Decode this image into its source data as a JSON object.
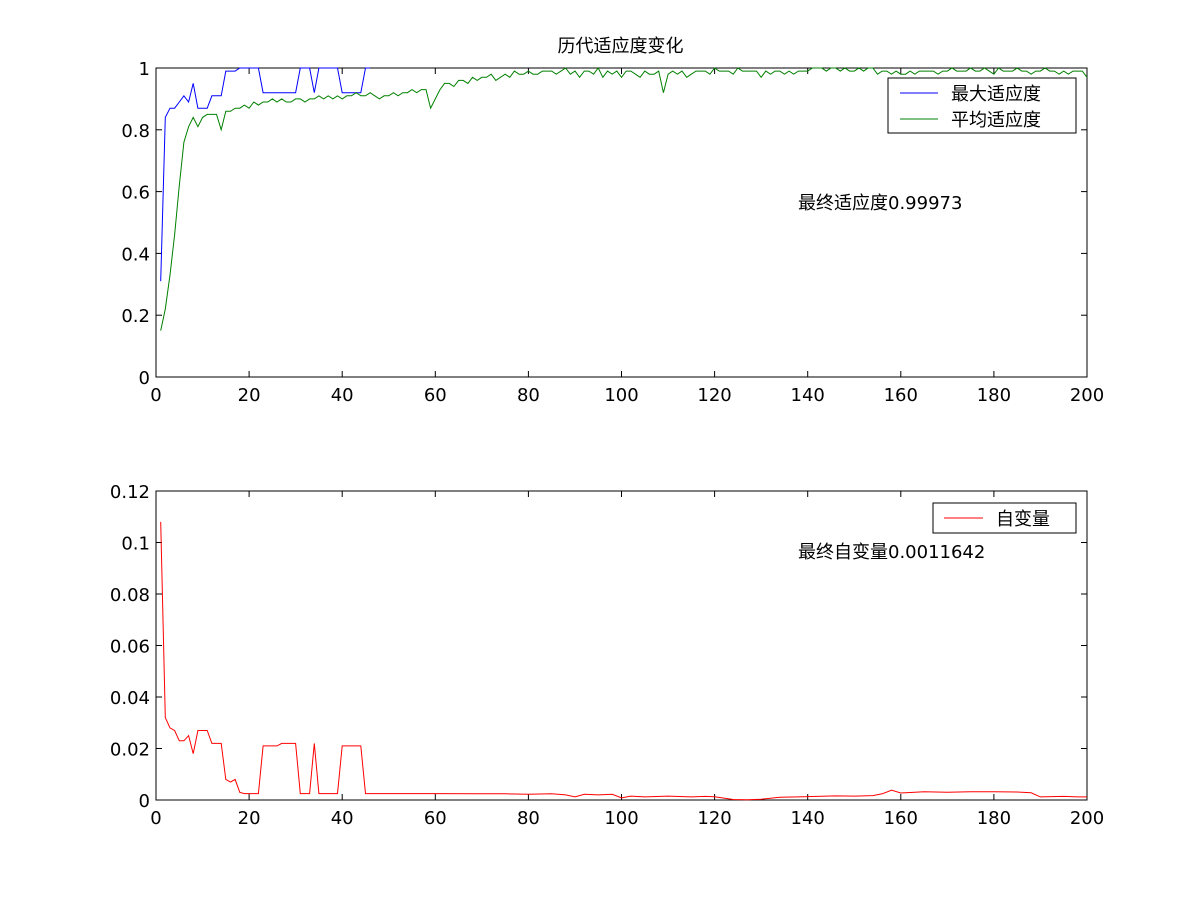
{
  "chart_data": [
    {
      "type": "line",
      "title": "历代适应度变化",
      "xlabel": "",
      "ylabel": "",
      "xlim": [
        0,
        200
      ],
      "ylim": [
        0,
        1
      ],
      "xticks": [
        0,
        20,
        40,
        60,
        80,
        100,
        120,
        140,
        160,
        180,
        200
      ],
      "yticks": [
        0,
        0.2,
        0.4,
        0.6,
        0.8,
        1
      ],
      "xtick_labels": [
        "0",
        "20",
        "40",
        "60",
        "80",
        "100",
        "120",
        "140",
        "160",
        "180",
        "200"
      ],
      "ytick_labels": [
        "0",
        "0.2",
        "0.4",
        "0.6",
        "0.8",
        "1"
      ],
      "grid": false,
      "legend_position": "top-right",
      "annotation": "最终适应度0.99973",
      "series": [
        {
          "name": "最大适应度",
          "color": "#0000ff",
          "x": [
            1,
            2,
            3,
            4,
            5,
            6,
            7,
            8,
            9,
            10,
            11,
            12,
            13,
            14,
            15,
            16,
            17,
            18,
            19,
            20,
            21,
            22,
            23,
            24,
            25,
            26,
            27,
            28,
            29,
            30,
            31,
            32,
            33,
            34,
            35,
            36,
            37,
            38,
            39,
            40,
            41,
            42,
            43,
            44,
            45,
            46
          ],
          "y": [
            0.31,
            0.84,
            0.87,
            0.87,
            0.89,
            0.91,
            0.89,
            0.95,
            0.87,
            0.87,
            0.87,
            0.91,
            0.91,
            0.91,
            0.99,
            0.99,
            0.99,
            1.0,
            1.0,
            1.0,
            1.0,
            1.0,
            0.92,
            0.92,
            0.92,
            0.92,
            0.92,
            0.92,
            0.92,
            0.92,
            1.0,
            1.0,
            1.0,
            0.92,
            1.0,
            1.0,
            1.0,
            1.0,
            1.0,
            0.92,
            0.92,
            0.92,
            0.92,
            0.92,
            1.0,
            1.0
          ]
        },
        {
          "name": "平均适应度",
          "color": "#008000",
          "x": [
            1,
            2,
            3,
            4,
            5,
            6,
            7,
            8,
            9,
            10,
            11,
            12,
            13,
            14,
            15,
            16,
            17,
            18,
            19,
            20,
            21,
            22,
            23,
            24,
            25,
            26,
            27,
            28,
            29,
            30,
            31,
            32,
            33,
            34,
            35,
            36,
            37,
            38,
            39,
            40,
            41,
            42,
            43,
            44,
            45,
            46,
            47,
            48,
            49,
            50,
            51,
            52,
            53,
            54,
            55,
            56,
            57,
            58,
            59,
            60,
            61,
            62,
            63,
            64,
            65,
            66,
            67,
            68,
            69,
            70,
            71,
            72,
            73,
            74,
            75,
            76,
            77,
            78,
            79,
            80,
            81,
            82,
            83,
            84,
            85,
            86,
            87,
            88,
            89,
            90,
            91,
            92,
            93,
            94,
            95,
            96,
            97,
            98,
            99,
            100,
            101,
            102,
            103,
            104,
            105,
            106,
            107,
            108,
            109,
            110,
            111,
            112,
            113,
            114,
            115,
            116,
            117,
            118,
            119,
            120,
            121,
            122,
            123,
            124,
            125,
            126,
            127,
            128,
            129,
            130,
            131,
            132,
            133,
            134,
            135,
            136,
            137,
            138,
            139,
            140,
            141,
            142,
            143,
            144,
            145,
            146,
            147,
            148,
            149,
            150,
            151,
            152,
            153,
            154,
            155,
            156,
            157,
            158,
            159,
            160,
            161,
            162,
            163,
            164,
            165,
            166,
            167,
            168,
            169,
            170,
            171,
            172,
            173,
            174,
            175,
            176,
            177,
            178,
            179,
            180,
            181,
            182,
            183,
            184,
            185,
            186,
            187,
            188,
            189,
            190,
            191,
            192,
            193,
            194,
            195,
            196,
            197,
            198,
            199,
            200
          ],
          "y": [
            0.15,
            0.22,
            0.33,
            0.46,
            0.62,
            0.76,
            0.81,
            0.84,
            0.81,
            0.84,
            0.85,
            0.85,
            0.85,
            0.8,
            0.86,
            0.86,
            0.87,
            0.87,
            0.88,
            0.87,
            0.89,
            0.88,
            0.89,
            0.89,
            0.9,
            0.89,
            0.9,
            0.89,
            0.89,
            0.9,
            0.9,
            0.89,
            0.9,
            0.9,
            0.91,
            0.9,
            0.91,
            0.9,
            0.91,
            0.9,
            0.91,
            0.91,
            0.92,
            0.91,
            0.91,
            0.92,
            0.91,
            0.9,
            0.91,
            0.91,
            0.92,
            0.91,
            0.92,
            0.92,
            0.93,
            0.92,
            0.93,
            0.93,
            0.87,
            0.9,
            0.93,
            0.95,
            0.95,
            0.94,
            0.96,
            0.96,
            0.95,
            0.97,
            0.96,
            0.97,
            0.97,
            0.98,
            0.96,
            0.97,
            0.98,
            0.97,
            0.99,
            0.98,
            0.98,
            0.99,
            0.98,
            0.98,
            0.99,
            0.99,
            0.99,
            0.98,
            0.99,
            1.0,
            0.98,
            0.99,
            0.97,
            0.99,
            0.99,
            0.98,
            1.0,
            0.97,
            0.99,
            0.98,
            0.99,
            0.97,
            0.99,
            0.99,
            0.98,
            0.97,
            0.99,
            0.98,
            0.98,
            0.99,
            0.92,
            0.98,
            0.99,
            0.98,
            0.99,
            0.97,
            0.98,
            0.99,
            0.99,
            0.99,
            0.98,
            1.0,
            0.99,
            0.99,
            0.99,
            0.98,
            1.0,
            0.99,
            0.99,
            0.99,
            0.99,
            0.97,
            0.99,
            0.98,
            0.99,
            0.99,
            0.98,
            0.99,
            0.98,
            0.99,
            0.99,
            0.99,
            1.0,
            1.0,
            1.0,
            0.99,
            1.0,
            1.0,
            0.99,
            1.0,
            0.99,
            0.99,
            1.0,
            0.99,
            1.0,
            1.0,
            0.98,
            0.99,
            0.99,
            0.98,
            0.99,
            0.98,
            0.98,
            0.99,
            0.98,
            0.99,
            0.99,
            0.99,
            0.99,
            0.98,
            0.99,
            0.99,
            1.0,
            0.99,
            0.99,
            0.99,
            1.0,
            0.99,
            0.99,
            1.0,
            0.99,
            0.98,
            1.0,
            0.99,
            0.99,
            0.99,
            1.0,
            0.99,
            0.99,
            0.98,
            0.99,
            0.99,
            1.0,
            0.99,
            0.99,
            0.98,
            0.99,
            0.98,
            0.99,
            0.99,
            0.99,
            0.97
          ]
        }
      ]
    },
    {
      "type": "line",
      "title": "",
      "xlabel": "",
      "ylabel": "",
      "xlim": [
        0,
        200
      ],
      "ylim": [
        0,
        0.12
      ],
      "xticks": [
        0,
        20,
        40,
        60,
        80,
        100,
        120,
        140,
        160,
        180,
        200
      ],
      "yticks": [
        0,
        0.02,
        0.04,
        0.06,
        0.08,
        0.1,
        0.12
      ],
      "xtick_labels": [
        "0",
        "20",
        "40",
        "60",
        "80",
        "100",
        "120",
        "140",
        "160",
        "180",
        "200"
      ],
      "ytick_labels": [
        "0",
        "0.02",
        "0.04",
        "0.06",
        "0.08",
        "0.1",
        "0.12"
      ],
      "grid": false,
      "legend_position": "top-right",
      "annotation": "最终自变量0.0011642",
      "series": [
        {
          "name": "自变量",
          "color": "#ff0000",
          "x": [
            1,
            2,
            3,
            4,
            5,
            6,
            7,
            8,
            9,
            10,
            11,
            12,
            13,
            14,
            15,
            16,
            17,
            18,
            19,
            20,
            21,
            22,
            23,
            24,
            25,
            26,
            27,
            28,
            29,
            30,
            31,
            32,
            33,
            34,
            35,
            36,
            37,
            38,
            39,
            40,
            41,
            42,
            43,
            44,
            45,
            46,
            50,
            60,
            70,
            75,
            80,
            85,
            88,
            90,
            92,
            95,
            98,
            100,
            102,
            105,
            110,
            115,
            118,
            120,
            124,
            127,
            130,
            134,
            138,
            142,
            146,
            150,
            154,
            156,
            158,
            160,
            165,
            170,
            175,
            180,
            185,
            188,
            190,
            195,
            198,
            200
          ],
          "y": [
            0.108,
            0.032,
            0.028,
            0.027,
            0.023,
            0.023,
            0.025,
            0.018,
            0.027,
            0.027,
            0.027,
            0.022,
            0.022,
            0.022,
            0.008,
            0.007,
            0.008,
            0.003,
            0.0025,
            0.0025,
            0.0025,
            0.0025,
            0.021,
            0.021,
            0.021,
            0.021,
            0.022,
            0.022,
            0.022,
            0.022,
            0.0025,
            0.0025,
            0.0025,
            0.022,
            0.0025,
            0.0025,
            0.0025,
            0.0025,
            0.0025,
            0.021,
            0.021,
            0.021,
            0.021,
            0.021,
            0.0025,
            0.0025,
            0.0025,
            0.0025,
            0.0024,
            0.0024,
            0.0022,
            0.0024,
            0.002,
            0.0012,
            0.0022,
            0.002,
            0.0022,
            0.0008,
            0.0015,
            0.0012,
            0.0015,
            0.0012,
            0.0014,
            0.0013,
            0.0002,
            0.0001,
            0.0003,
            0.0011,
            0.0012,
            0.0014,
            0.0016,
            0.0015,
            0.0017,
            0.0024,
            0.0038,
            0.0027,
            0.0032,
            0.003,
            0.0032,
            0.0032,
            0.0031,
            0.0028,
            0.0012,
            0.0014,
            0.0012,
            0.0012
          ]
        }
      ]
    }
  ]
}
